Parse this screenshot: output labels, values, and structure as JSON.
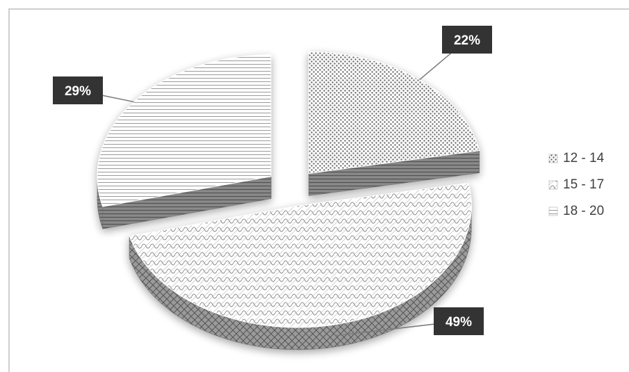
{
  "chart_data": {
    "type": "pie",
    "style": "3d-exploded",
    "categories": [
      "12 - 14",
      "15 - 17",
      "18 - 20"
    ],
    "values": [
      22,
      49,
      29
    ],
    "data_labels": [
      "22%",
      "49%",
      "29%"
    ],
    "legend": {
      "position": "right",
      "entries": [
        "12 - 14",
        "15 - 17",
        "18 - 20"
      ]
    },
    "patterns": [
      "dots",
      "scales",
      "horizontal-stripes"
    ],
    "colors": {
      "label_bg": "#333333",
      "label_text": "#ffffff",
      "slice_fill": "#ffffff",
      "pattern": "#7a7a7a",
      "side": "#6e6e6e",
      "legend_text": "#404040"
    }
  }
}
